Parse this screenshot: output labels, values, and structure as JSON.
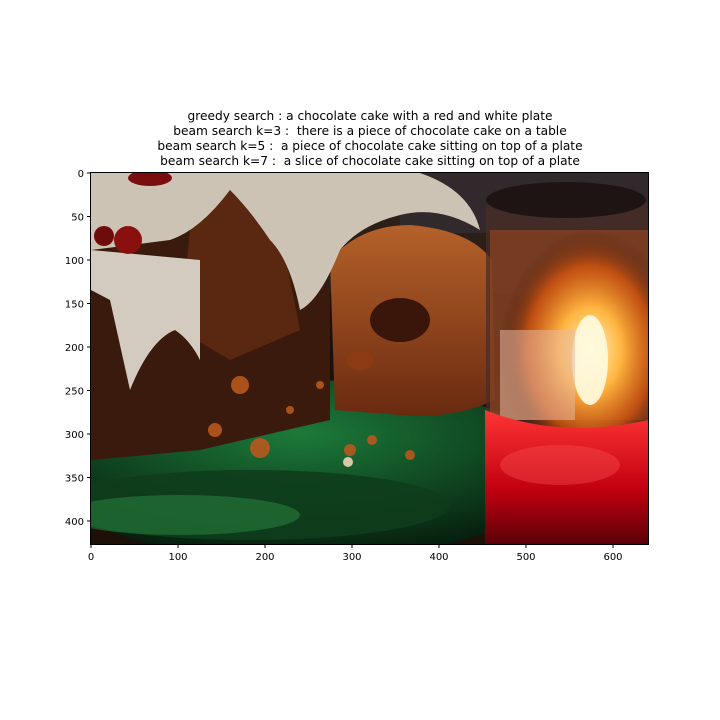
{
  "figure": {
    "captions": [
      "greedy search : a chocolate cake with a red and white plate",
      "beam search k=3 :  there is a piece of chocolate cake on a table",
      "beam search k=5 :  a piece of chocolate cake sitting on top of a plate",
      "beam search k=7 :  a slice of chocolate cake sitting on top of a plate"
    ],
    "x_ticks": [
      "0",
      "100",
      "200",
      "300",
      "400",
      "500",
      "600"
    ],
    "y_ticks": [
      "0",
      "50",
      "100",
      "150",
      "200",
      "250",
      "300",
      "350",
      "400"
    ],
    "image_size": {
      "width": 640,
      "height": 427
    }
  }
}
